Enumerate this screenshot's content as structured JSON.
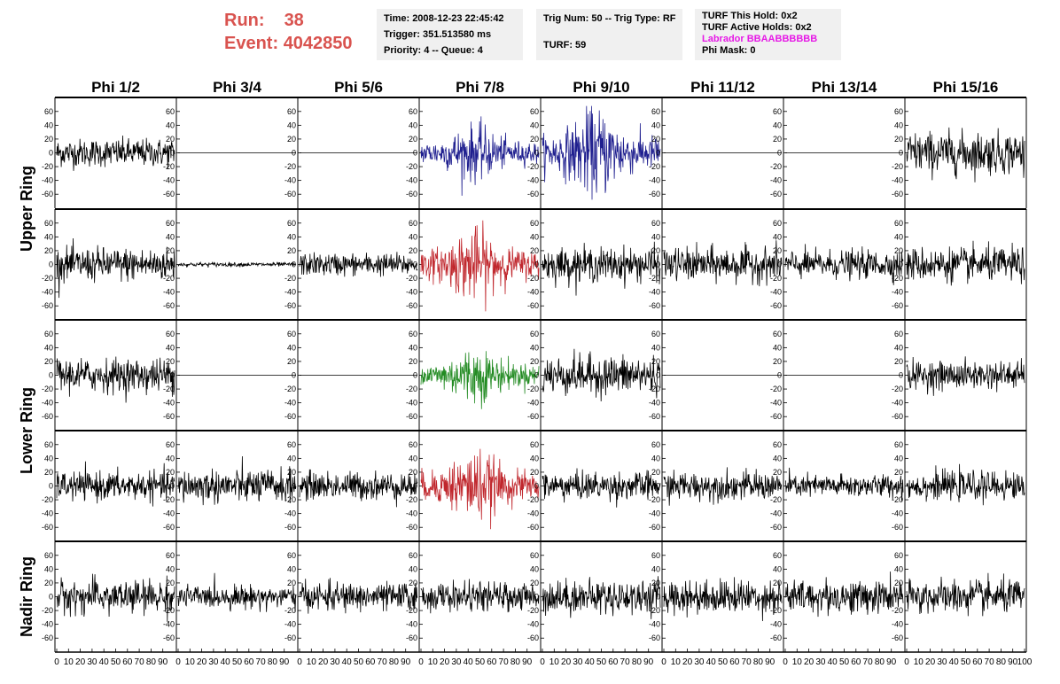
{
  "header": {
    "run_label": "Run:",
    "run_value": "38",
    "event_label": "Event:",
    "event_value": "4042850",
    "time": "Time: 2008-12-23 22:45:42",
    "trigger": "Trigger: 351.513580 ms",
    "priority_queue": "Priority: 4 -- Queue: 4",
    "trig_num_type": "Trig Num: 50 -- Trig Type: RF",
    "turf": "TURF: 59",
    "turf_this_hold": "TURF This Hold: 0x2",
    "turf_active_holds": "TURF Active Holds: 0x2",
    "labrador": "Labrador BBAABBBBBB",
    "phi_mask": "Phi Mask: 0"
  },
  "colors": {
    "run_text": "#d9534f",
    "labrador_text": "#e619e6",
    "trace_default": "#000000",
    "trace_blue": "#1f1f8f",
    "trace_red": "#c0272d",
    "trace_green": "#238b23"
  },
  "chart_data": {
    "type": "line",
    "columns": [
      "Phi 1/2",
      "Phi 3/4",
      "Phi 5/6",
      "Phi 7/8",
      "Phi 9/10",
      "Phi 11/12",
      "Phi 13/14",
      "Phi 15/16"
    ],
    "row_groups": [
      {
        "label": "Upper Ring",
        "rows": [
          0,
          1
        ]
      },
      {
        "label": "Lower Ring",
        "rows": [
          2,
          3
        ]
      },
      {
        "label": "Nadir Ring",
        "rows": [
          4
        ]
      }
    ],
    "xlim": [
      0,
      100
    ],
    "ylim": [
      -70,
      70
    ],
    "y_ticks": [
      -60,
      -40,
      -20,
      0,
      20,
      40,
      60
    ],
    "x_ticks": [
      0,
      10,
      20,
      30,
      40,
      50,
      60,
      70,
      80,
      90,
      100
    ],
    "samples": 260,
    "waveform_rms": [
      [
        10,
        0,
        0,
        14,
        22,
        0,
        0,
        15
      ],
      [
        12,
        1.5,
        8,
        18,
        12,
        12,
        10,
        12
      ],
      [
        12,
        0,
        0,
        14,
        14,
        0,
        0,
        10
      ],
      [
        10,
        12,
        10,
        18,
        10,
        10,
        8,
        10
      ],
      [
        12,
        8,
        10,
        10,
        12,
        12,
        12,
        12
      ]
    ],
    "waveform_color": [
      [
        "default",
        "default",
        "default",
        "blue",
        "blue",
        "default",
        "default",
        "default"
      ],
      [
        "default",
        "default",
        "default",
        "red",
        "default",
        "default",
        "default",
        "default"
      ],
      [
        "default",
        "default",
        "default",
        "green",
        "default",
        "default",
        "default",
        "default"
      ],
      [
        "default",
        "default",
        "default",
        "red",
        "default",
        "default",
        "default",
        "default"
      ],
      [
        "default",
        "default",
        "default",
        "default",
        "default",
        "default",
        "default",
        "default"
      ]
    ],
    "flat_channels": [
      [
        0,
        1
      ],
      [
        0,
        2
      ],
      [
        0,
        5
      ],
      [
        0,
        6
      ],
      [
        2,
        1
      ],
      [
        2,
        2
      ],
      [
        2,
        5
      ],
      [
        2,
        6
      ]
    ]
  }
}
